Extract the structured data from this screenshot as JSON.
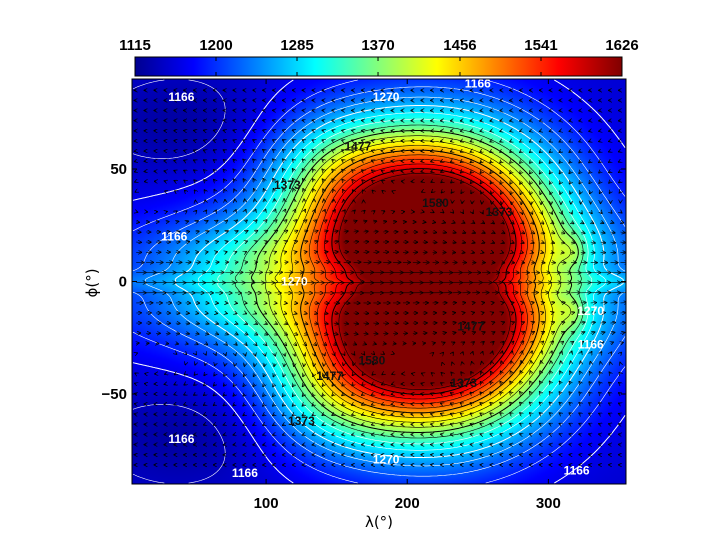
{
  "chart_data": {
    "type": "heatmap",
    "title": "",
    "xlabel": "λ(°)",
    "ylabel": "ϕ(°)",
    "xlim": [
      5,
      355
    ],
    "ylim": [
      -90,
      90
    ],
    "x_ticks": [
      100,
      200,
      300
    ],
    "y_ticks": [
      50,
      0,
      -50
    ],
    "x_tick_labels": [
      "100",
      "200",
      "300"
    ],
    "y_tick_labels": [
      "50",
      "0",
      "−50"
    ],
    "colorbar": {
      "position": "top",
      "range": [
        1115,
        1626
      ],
      "ticks": [
        1115,
        1200,
        1285,
        1370,
        1456,
        1541,
        1626
      ],
      "tick_labels": [
        "1115",
        "1200",
        "1285",
        "1370",
        "1456",
        "1541",
        "1626"
      ],
      "colormap": [
        "#00008f",
        "#0000ff",
        "#00ffff",
        "#ffff00",
        "#ff0000",
        "#800000"
      ]
    },
    "contour_levels": [
      1166,
      1270,
      1373,
      1477,
      1580
    ],
    "contour_labels": [
      {
        "text": "1166",
        "x": 40,
        "y": 82,
        "color": "white"
      },
      {
        "text": "1270",
        "x": 185,
        "y": 82,
        "color": "white"
      },
      {
        "text": "1166",
        "x": 250,
        "y": 88,
        "color": "white"
      },
      {
        "text": "1477",
        "x": 165,
        "y": 60,
        "color": "black"
      },
      {
        "text": "1373",
        "x": 115,
        "y": 43,
        "color": "black"
      },
      {
        "text": "1580",
        "x": 220,
        "y": 35,
        "color": "black"
      },
      {
        "text": "1373",
        "x": 265,
        "y": 31,
        "color": "black"
      },
      {
        "text": "1166",
        "x": 35,
        "y": 20,
        "color": "white"
      },
      {
        "text": "1270",
        "x": 120,
        "y": 0,
        "color": "white"
      },
      {
        "text": "1270",
        "x": 330,
        "y": -13,
        "color": "white"
      },
      {
        "text": "1166",
        "x": 330,
        "y": -28,
        "color": "white"
      },
      {
        "text": "1477",
        "x": 245,
        "y": -20,
        "color": "black"
      },
      {
        "text": "1477",
        "x": 145,
        "y": -42,
        "color": "black"
      },
      {
        "text": "1580",
        "x": 175,
        "y": -35,
        "color": "black"
      },
      {
        "text": "1373",
        "x": 240,
        "y": -45,
        "color": "black"
      },
      {
        "text": "1373",
        "x": 125,
        "y": -62,
        "color": "black"
      },
      {
        "text": "1166",
        "x": 40,
        "y": -70,
        "color": "white"
      },
      {
        "text": "1270",
        "x": 185,
        "y": -79,
        "color": "white"
      },
      {
        "text": "1166",
        "x": 85,
        "y": -85,
        "color": "white"
      },
      {
        "text": "1166",
        "x": 320,
        "y": -84,
        "color": "white"
      }
    ],
    "grid": false,
    "overlay": "wind vector field (arrows)"
  }
}
